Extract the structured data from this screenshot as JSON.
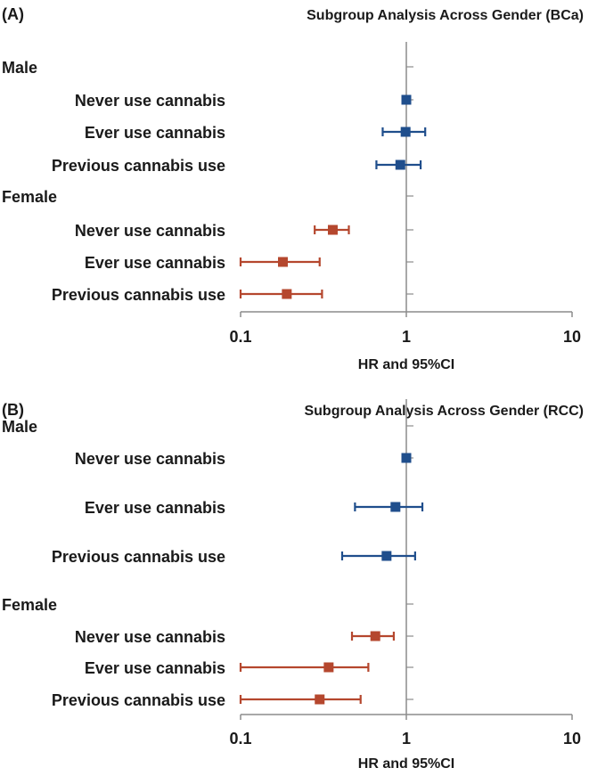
{
  "chart_data": [
    {
      "type": "forest",
      "panel_label": "(A)",
      "title": "Subgroup Analysis Across Gender (BCa)",
      "xlabel": "HR and 95%CI",
      "x_scale": "log",
      "xlim": [
        0.1,
        10
      ],
      "x_ticks": [
        "0.1",
        "1",
        "10"
      ],
      "reference_line": 1,
      "groups": [
        {
          "name": "Male",
          "color": "#1f4e8c",
          "rows": [
            {
              "label": "Never use cannabis",
              "hr": 1.0,
              "lower": 0.96,
              "upper": 1.05
            },
            {
              "label": "Ever use cannabis",
              "hr": 0.99,
              "lower": 0.72,
              "upper": 1.3
            },
            {
              "label": "Previous cannabis use",
              "hr": 0.92,
              "lower": 0.66,
              "upper": 1.22
            }
          ]
        },
        {
          "name": "Female",
          "color": "#b5472e",
          "rows": [
            {
              "label": "Never use cannabis",
              "hr": 0.36,
              "lower": 0.28,
              "upper": 0.45
            },
            {
              "label": "Ever use cannabis",
              "hr": 0.18,
              "lower": 0.1,
              "upper": 0.3
            },
            {
              "label": "Previous cannabis use",
              "hr": 0.19,
              "lower": 0.1,
              "upper": 0.31
            }
          ]
        }
      ]
    },
    {
      "type": "forest",
      "panel_label": "(B)",
      "title": "Subgroup Analysis Across Gender (RCC)",
      "xlabel": "HR and 95%CI",
      "x_scale": "log",
      "xlim": [
        0.1,
        10
      ],
      "x_ticks": [
        "0.1",
        "1",
        "10"
      ],
      "reference_line": 1,
      "groups": [
        {
          "name": "Male",
          "color": "#1f4e8c",
          "rows": [
            {
              "label": "Never use cannabis",
              "hr": 1.0,
              "lower": 0.96,
              "upper": 1.05
            },
            {
              "label": "Ever use cannabis",
              "hr": 0.86,
              "lower": 0.49,
              "upper": 1.25
            },
            {
              "label": "Previous cannabis use",
              "hr": 0.76,
              "lower": 0.41,
              "upper": 1.13
            }
          ]
        },
        {
          "name": "Female",
          "color": "#b5472e",
          "rows": [
            {
              "label": "Never use cannabis",
              "hr": 0.65,
              "lower": 0.47,
              "upper": 0.84
            },
            {
              "label": "Ever use cannabis",
              "hr": 0.34,
              "lower": 0.1,
              "upper": 0.59
            },
            {
              "label": "Previous cannabis use",
              "hr": 0.3,
              "lower": 0.1,
              "upper": 0.53
            }
          ]
        }
      ]
    }
  ]
}
